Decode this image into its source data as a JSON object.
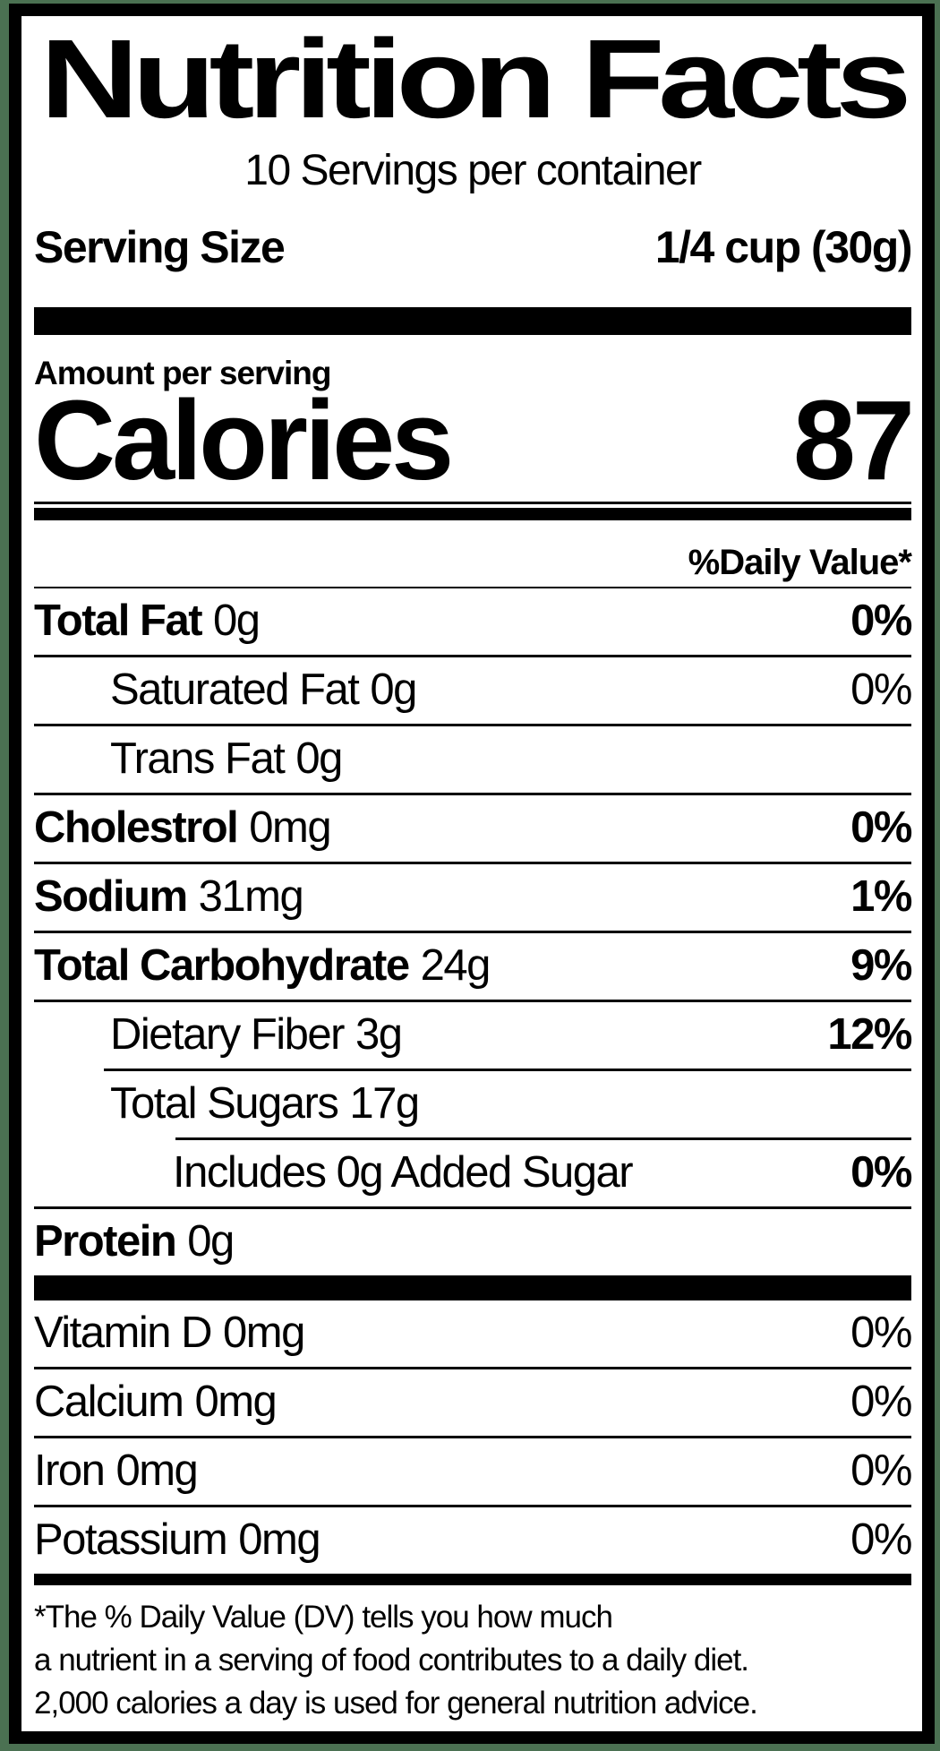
{
  "colors": {
    "frame_green": "#4b7152",
    "ink": "#000000",
    "paper": "#ffffff"
  },
  "header": {
    "title": "Nutrition Facts",
    "servings_line": "10 Servings per container",
    "serving_size_label": "Serving Size",
    "serving_size_value": "1/4 cup (30g)"
  },
  "calories_section": {
    "amount_per_serving_label": "Amount per serving",
    "calories_label": "Calories",
    "calories_value": "87"
  },
  "daily_value_header": "%Daily Value*",
  "nutrients": [
    {
      "name": "Total Fat",
      "amount": "0g",
      "daily_value": "0%"
    },
    {
      "name": "Saturated Fat",
      "amount": "0g",
      "daily_value": "0%"
    },
    {
      "name": "Trans Fat",
      "amount": "0g",
      "daily_value": ""
    },
    {
      "name": "Cholestrol",
      "amount": "0mg",
      "daily_value": "0%"
    },
    {
      "name": "Sodium",
      "amount": "31mg",
      "daily_value": "1%"
    },
    {
      "name": "Total Carbohydrate",
      "amount": "24g",
      "daily_value": "9%"
    },
    {
      "name": "Dietary Fiber",
      "amount": "3g",
      "daily_value": "12%"
    },
    {
      "name": "Total Sugars",
      "amount": "17g",
      "daily_value": ""
    },
    {
      "name": "Includes 0g Added Sugar",
      "amount": "",
      "daily_value": "0%"
    },
    {
      "name": "Protein",
      "amount": "0g",
      "daily_value": ""
    }
  ],
  "micronutrients": [
    {
      "name": "Vitamin D",
      "amount": "0mg",
      "daily_value": "0%"
    },
    {
      "name": "Calcium",
      "amount": "0mg",
      "daily_value": "0%"
    },
    {
      "name": "Iron",
      "amount": "0mg",
      "daily_value": "0%"
    },
    {
      "name": "Potassium",
      "amount": "0mg",
      "daily_value": "0%"
    }
  ],
  "footnote_lines": [
    "*The % Daily Value (DV) tells you how much",
    "a nutrient in a serving of food contributes to a daily diet.",
    "2,000 calories a day is used for general nutrition advice."
  ]
}
